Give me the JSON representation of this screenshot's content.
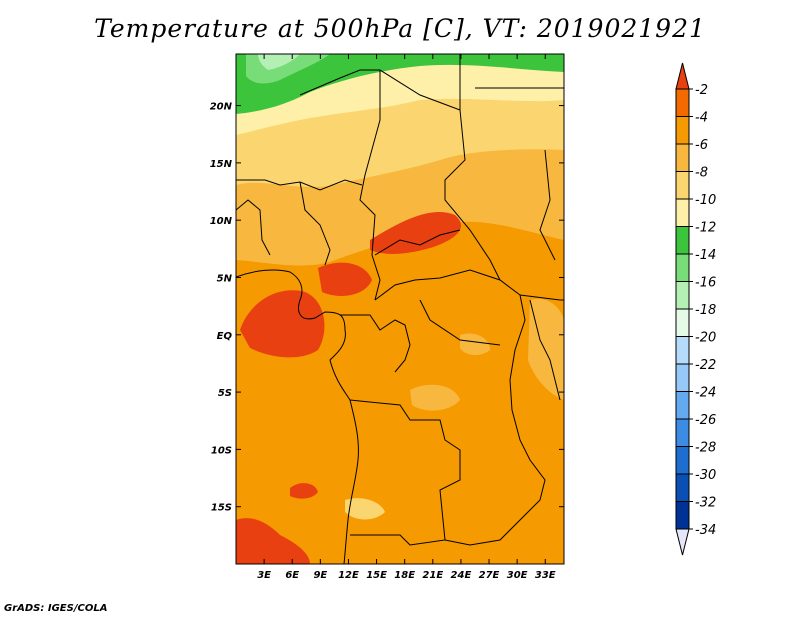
{
  "title": "Temperature at 500hPa [C], VT: 2019021921",
  "credit": "GrADS: IGES/COLA",
  "map": {
    "lon_range": [
      0,
      35
    ],
    "lat_range": [
      -20,
      24.5
    ],
    "lat_ticks": [
      {
        "value": 20,
        "label": "20N"
      },
      {
        "value": 15,
        "label": "15N"
      },
      {
        "value": 10,
        "label": "10N"
      },
      {
        "value": 5,
        "label": "5N"
      },
      {
        "value": 0,
        "label": "EQ"
      },
      {
        "value": -5,
        "label": "5S"
      },
      {
        "value": -10,
        "label": "10S"
      },
      {
        "value": -15,
        "label": "15S"
      }
    ],
    "lon_ticks": [
      {
        "value": 3,
        "label": "3E"
      },
      {
        "value": 6,
        "label": "6E"
      },
      {
        "value": 9,
        "label": "9E"
      },
      {
        "value": 12,
        "label": "12E"
      },
      {
        "value": 15,
        "label": "15E"
      },
      {
        "value": 18,
        "label": "18E"
      },
      {
        "value": 21,
        "label": "21E"
      },
      {
        "value": 24,
        "label": "24E"
      },
      {
        "value": 27,
        "label": "27E"
      },
      {
        "value": 30,
        "label": "30E"
      },
      {
        "value": 33,
        "label": "33E"
      }
    ]
  },
  "colorbar": {
    "levels": [
      "-2",
      "-4",
      "-6",
      "-8",
      "-10",
      "-12",
      "-14",
      "-16",
      "-18",
      "-20",
      "-22",
      "-24",
      "-26",
      "-28",
      "-30",
      "-32",
      "-34"
    ],
    "colors": [
      "#e84010",
      "#f26a00",
      "#f59a00",
      "#f8b840",
      "#fbd670",
      "#fef0a8",
      "#3cc43c",
      "#78dc78",
      "#b4f0b4",
      "#e6fae8",
      "#b4dcfa",
      "#96c8f8",
      "#64aaf0",
      "#3c8ce6",
      "#1e6ed2",
      "#0a50b4",
      "#003296",
      "#0a0a78"
    ],
    "top_cap_color": "#e84010",
    "bottom_cap_color": "#e6e6fa"
  },
  "chart_data": {
    "type": "heatmap",
    "variable": "Temperature at 500hPa [C]",
    "valid_time": "2019021921",
    "units": "C",
    "x_range": [
      0,
      35
    ],
    "y_range": [
      -20,
      24.5
    ],
    "contour_levels": [
      -2,
      -4,
      -6,
      -8,
      -10,
      -12,
      -14,
      -16,
      -18,
      -20,
      -22,
      -24,
      -26,
      -28,
      -30,
      -32,
      -34
    ],
    "field_description_by_latitude": [
      {
        "lat": 22,
        "value_range": [
          -14,
          -10
        ]
      },
      {
        "lat": 18,
        "value_range": [
          -12,
          -8
        ]
      },
      {
        "lat": 12,
        "value_range": [
          -8,
          -6
        ]
      },
      {
        "lat": 8,
        "value_range": [
          -6,
          -4
        ]
      },
      {
        "lat": 0,
        "value_range": [
          -6,
          -2
        ]
      },
      {
        "lat": -10,
        "value_range": [
          -6,
          -4
        ]
      },
      {
        "lat": -18,
        "value_range": [
          -6,
          -2
        ]
      }
    ]
  }
}
